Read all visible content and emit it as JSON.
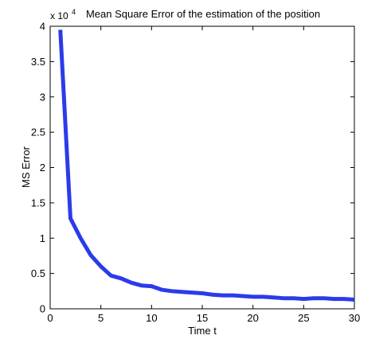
{
  "chart_data": {
    "type": "line",
    "title": "Mean Square Error of the estimation of the position",
    "xlabel": "Time t",
    "ylabel": "MS Error",
    "y_multiplier_label": {
      "base": "x 10",
      "exponent": "4"
    },
    "xlim": [
      0,
      30
    ],
    "ylim": [
      0,
      4
    ],
    "x_ticks": [
      0,
      5,
      10,
      15,
      20,
      25,
      30
    ],
    "x_tick_labels": [
      "0",
      "5",
      "10",
      "15",
      "20",
      "25",
      "30"
    ],
    "y_ticks": [
      0,
      0.5,
      1,
      1.5,
      2,
      2.5,
      3,
      3.5,
      4
    ],
    "y_tick_labels": [
      "0",
      "0.5",
      "1",
      "1.5",
      "2",
      "2.5",
      "3",
      "3.5",
      "4"
    ],
    "grid": false,
    "series": [
      {
        "color": "#2b3bea",
        "x": [
          1,
          2,
          3,
          4,
          5,
          6,
          7,
          8,
          9,
          10,
          11,
          12,
          13,
          14,
          15,
          16,
          17,
          18,
          19,
          20,
          21,
          22,
          23,
          24,
          25,
          26,
          27,
          28,
          29,
          30
        ],
        "y": [
          3.95,
          1.28,
          1.0,
          0.76,
          0.6,
          0.47,
          0.43,
          0.37,
          0.33,
          0.32,
          0.27,
          0.25,
          0.24,
          0.23,
          0.22,
          0.2,
          0.19,
          0.19,
          0.18,
          0.17,
          0.17,
          0.16,
          0.15,
          0.15,
          0.14,
          0.15,
          0.15,
          0.14,
          0.14,
          0.13
        ]
      }
    ]
  }
}
